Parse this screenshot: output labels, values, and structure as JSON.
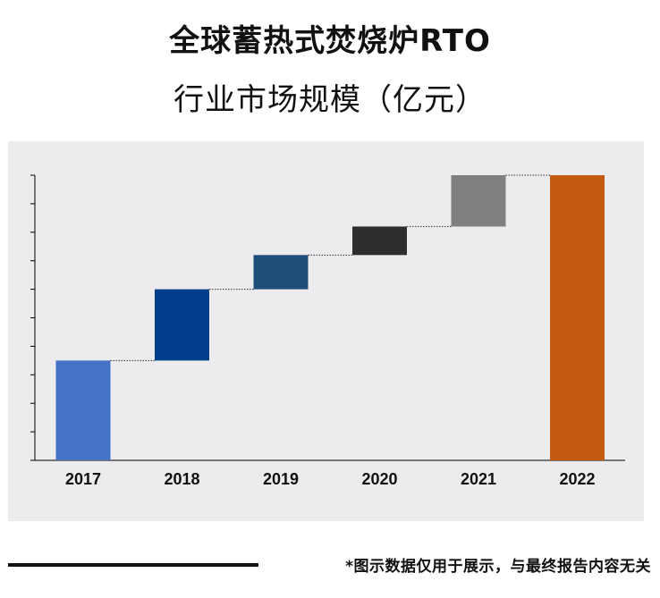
{
  "title_line1": "全球蓄热式焚烧炉RTO",
  "title_line2": "行业市场规模（亿元）",
  "footer_note": "*图示数据仅用于展示，与最终报告内容无关",
  "colors": {
    "background": "#ececee",
    "bar_2017": "#4472c4",
    "bar_2018": "#003d8a",
    "bar_2019": "#1f4e79",
    "bar_2020": "#2e2e2e",
    "bar_2021": "#808080",
    "bar_2022": "#c55a11"
  },
  "chart_data": {
    "type": "waterfall",
    "title": "全球蓄热式焚烧炉RTO 行业市场规模（亿元）",
    "categories": [
      "2017",
      "2018",
      "2019",
      "2020",
      "2021",
      "2022"
    ],
    "bars": [
      {
        "label": "2017",
        "start": 0,
        "end": 35
      },
      {
        "label": "2018",
        "start": 35,
        "end": 60
      },
      {
        "label": "2019",
        "start": 60,
        "end": 72
      },
      {
        "label": "2020",
        "start": 72,
        "end": 82
      },
      {
        "label": "2021",
        "start": 82,
        "end": 100
      },
      {
        "label": "2022",
        "start": 0,
        "end": 100
      }
    ],
    "ylim": [
      0,
      100
    ],
    "ytick_count": 10,
    "ytick_labels_shown": false,
    "connector_lines": "dotted",
    "xlabel": "",
    "ylabel": ""
  }
}
